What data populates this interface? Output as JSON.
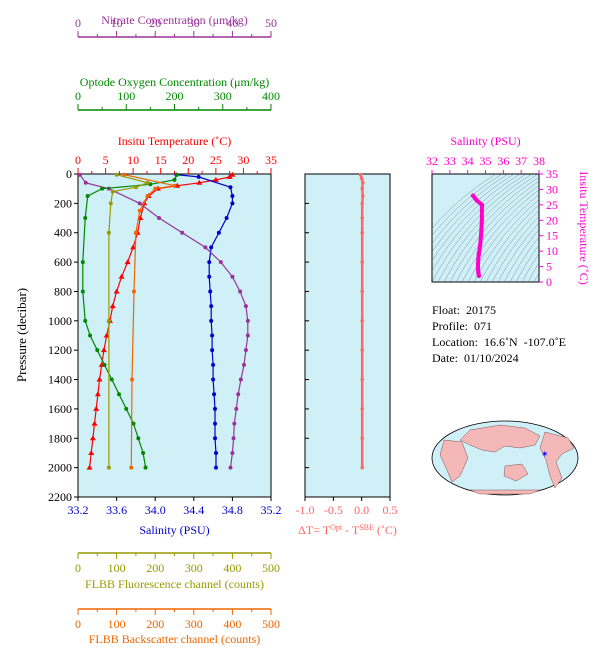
{
  "chart_data": [
    {
      "type": "line",
      "id": "main-profile",
      "ylabel": "Pressure (decibar)",
      "ylim": [
        2200,
        0
      ],
      "yticks": [
        0,
        200,
        400,
        600,
        800,
        1000,
        1200,
        1400,
        1600,
        1800,
        2000,
        2200
      ],
      "axes": {
        "temperature": {
          "label": "Insitu Temperature (˚C)",
          "range": [
            0,
            35
          ],
          "ticks": [
            0,
            5,
            10,
            15,
            20,
            25,
            30,
            35
          ],
          "color": "#ff0000"
        },
        "salinity": {
          "label": "Salinity (PSU)",
          "range": [
            33.2,
            35.2
          ],
          "ticks": [
            "33.2",
            "33.6",
            "34.0",
            "34.4",
            "34.8",
            "35.2"
          ],
          "color": "#0000cc"
        },
        "nitrate": {
          "label": "Nitrate Concentration (μm/kg)",
          "range": [
            0,
            50
          ],
          "ticks": [
            0,
            10,
            20,
            30,
            40,
            50
          ],
          "color": "#993399"
        },
        "oxygen": {
          "label": "Optode Oxygen Concentration (μm/kg)",
          "range": [
            0,
            400
          ],
          "ticks": [
            0,
            100,
            200,
            300,
            400
          ],
          "color": "#008800"
        },
        "fluorescence": {
          "label": "FLBB Fluorescence channel (counts)",
          "range": [
            0,
            500
          ],
          "ticks": [
            0,
            100,
            200,
            300,
            400,
            500
          ],
          "color": "#999900"
        },
        "backscatter": {
          "label": "FLBB Backscatter channel (counts)",
          "range": [
            0,
            500
          ],
          "ticks": [
            0,
            100,
            200,
            300,
            400,
            500
          ],
          "color": "#ee6600"
        }
      },
      "series": [
        {
          "key": "temperature",
          "color": "#ff0000",
          "points": [
            [
              28.0,
              5
            ],
            [
              27.5,
              20
            ],
            [
              25.0,
              40
            ],
            [
              22.0,
              60
            ],
            [
              18.0,
              80
            ],
            [
              14.5,
              100
            ],
            [
              12.8,
              150
            ],
            [
              12.0,
              200
            ],
            [
              11.3,
              300
            ],
            [
              10.8,
              400
            ],
            [
              10.0,
              500
            ],
            [
              9.0,
              600
            ],
            [
              7.9,
              700
            ],
            [
              7.0,
              800
            ],
            [
              6.3,
              900
            ],
            [
              5.8,
              1000
            ],
            [
              5.2,
              1100
            ],
            [
              4.7,
              1200
            ],
            [
              4.3,
              1300
            ],
            [
              3.9,
              1400
            ],
            [
              3.6,
              1500
            ],
            [
              3.3,
              1600
            ],
            [
              3.0,
              1700
            ],
            [
              2.7,
              1800
            ],
            [
              2.4,
              1900
            ],
            [
              2.1,
              2000
            ]
          ]
        },
        {
          "key": "salinity",
          "color": "#0000cc",
          "points": [
            [
              34.22,
              5
            ],
            [
              34.45,
              20
            ],
            [
              34.78,
              90
            ],
            [
              34.8,
              150
            ],
            [
              34.8,
              200
            ],
            [
              34.74,
              300
            ],
            [
              34.66,
              400
            ],
            [
              34.58,
              500
            ],
            [
              34.56,
              600
            ],
            [
              34.56,
              700
            ],
            [
              34.57,
              800
            ],
            [
              34.58,
              900
            ],
            [
              34.58,
              1000
            ],
            [
              34.59,
              1100
            ],
            [
              34.59,
              1200
            ],
            [
              34.6,
              1300
            ],
            [
              34.6,
              1400
            ],
            [
              34.61,
              1500
            ],
            [
              34.62,
              1600
            ],
            [
              34.62,
              1700
            ],
            [
              34.62,
              1800
            ],
            [
              34.63,
              1900
            ],
            [
              34.63,
              2000
            ]
          ]
        },
        {
          "key": "nitrate",
          "color": "#993399",
          "points": [
            [
              0.5,
              5
            ],
            [
              2,
              60
            ],
            [
              8,
              100
            ],
            [
              16,
              200
            ],
            [
              21,
              300
            ],
            [
              27,
              400
            ],
            [
              33,
              500
            ],
            [
              37,
              600
            ],
            [
              40,
              700
            ],
            [
              42,
              800
            ],
            [
              43.5,
              900
            ],
            [
              44,
              1000
            ],
            [
              44,
              1100
            ],
            [
              43.5,
              1200
            ],
            [
              43,
              1300
            ],
            [
              42.2,
              1400
            ],
            [
              41.5,
              1500
            ],
            [
              41,
              1600
            ],
            [
              40.5,
              1700
            ],
            [
              40.3,
              1800
            ],
            [
              40,
              1900
            ],
            [
              39.5,
              2000
            ]
          ]
        },
        {
          "key": "oxygen",
          "color": "#008800",
          "points": [
            [
              205,
              5
            ],
            [
              200,
              40
            ],
            [
              150,
              70
            ],
            [
              50,
              100
            ],
            [
              20,
              150
            ],
            [
              15,
              300
            ],
            [
              10,
              600
            ],
            [
              10,
              800
            ],
            [
              15,
              1000
            ],
            [
              25,
              1100
            ],
            [
              40,
              1200
            ],
            [
              55,
              1300
            ],
            [
              70,
              1400
            ],
            [
              85,
              1500
            ],
            [
              100,
              1600
            ],
            [
              115,
              1700
            ],
            [
              125,
              1800
            ],
            [
              135,
              1900
            ],
            [
              140,
              2000
            ]
          ]
        },
        {
          "key": "fluorescence",
          "color": "#999900",
          "points": [
            [
              100,
              5
            ],
            [
              180,
              60
            ],
            [
              150,
              90
            ],
            [
              90,
              120
            ],
            [
              85,
              200
            ],
            [
              80,
              400
            ],
            [
              80,
              1000
            ],
            [
              80,
              2000
            ]
          ]
        },
        {
          "key": "backscatter",
          "color": "#ee6600",
          "points": [
            [
              120,
              5
            ],
            [
              250,
              80
            ],
            [
              200,
              100
            ],
            [
              180,
              150
            ],
            [
              160,
              250
            ],
            [
              150,
              400
            ],
            [
              145,
              800
            ],
            [
              140,
              1400
            ],
            [
              138,
              2000
            ]
          ]
        }
      ]
    },
    {
      "type": "line",
      "id": "delta-t",
      "xlabel": "ΔT= T^Opt - T^SBE (˚C)",
      "xlim": [
        -1.0,
        0.5
      ],
      "xticks": [
        "-1.0",
        "-0.5",
        "0.0",
        "0.5"
      ],
      "ylim": [
        2200,
        0
      ],
      "series": [
        {
          "color": "#ff6666",
          "points": [
            [
              -0.02,
              5
            ],
            [
              0.0,
              30
            ],
            [
              0.02,
              60
            ],
            [
              0.01,
              100
            ],
            [
              0.02,
              150
            ],
            [
              0.01,
              200
            ],
            [
              0.01,
              300
            ],
            [
              0.01,
              400
            ],
            [
              0.01,
              600
            ],
            [
              0.01,
              800
            ],
            [
              0.01,
              1000
            ],
            [
              0.01,
              1200
            ],
            [
              0.01,
              1400
            ],
            [
              0.01,
              1600
            ],
            [
              0.01,
              1800
            ],
            [
              0.01,
              2000
            ]
          ]
        }
      ]
    },
    {
      "type": "scatter",
      "id": "ts-diagram",
      "xlabel": "Salinity (PSU)",
      "ylabel": "Insitu Temperature (˚C)",
      "xlim": [
        32,
        38
      ],
      "ylim": [
        0,
        35
      ],
      "xticks": [
        32,
        33,
        34,
        35,
        36,
        37,
        38
      ],
      "yticks": [
        0,
        5,
        10,
        15,
        20,
        25,
        30,
        35
      ],
      "color": "#ff00cc",
      "points": [
        [
          34.3,
          28
        ],
        [
          34.5,
          26.5
        ],
        [
          34.8,
          25
        ],
        [
          34.8,
          20
        ],
        [
          34.75,
          15
        ],
        [
          34.7,
          12
        ],
        [
          34.62,
          9
        ],
        [
          34.58,
          6
        ],
        [
          34.58,
          4
        ],
        [
          34.6,
          3
        ],
        [
          34.63,
          2
        ]
      ]
    }
  ],
  "info": {
    "float": "Float:  20175",
    "profile": "Profile:  071",
    "location": "Location:  16.6˚N  -107.0˚E",
    "date": "Date:  01/10/2024"
  }
}
